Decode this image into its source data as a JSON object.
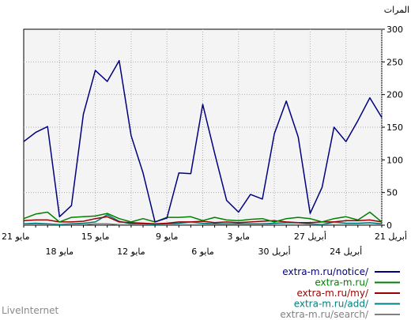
{
  "chart_data": {
    "type": "line",
    "ylabel": "المرات",
    "ylim": [
      0,
      300
    ],
    "y_ticks": [
      0,
      50,
      100,
      150,
      200,
      250,
      300
    ],
    "x_tick_labels_top": [
      "21 مايو",
      "15 مايو",
      "9 مايو",
      "3 مايو",
      "27 أبريل",
      "21 أبريل"
    ],
    "x_tick_labels_bottom": [
      "18 مايو",
      "12 مايو",
      "6 مايو",
      "30 أبريل",
      "24 أبريل"
    ],
    "grid": true,
    "legend_position": "bottom-right",
    "series": [
      {
        "name": "extra-m.ru/notice/",
        "color": "#000080",
        "values": [
          128,
          142,
          151,
          13,
          30,
          170,
          237,
          220,
          252,
          137,
          80,
          5,
          11,
          80,
          79,
          185,
          110,
          38,
          20,
          47,
          40,
          140,
          190,
          135,
          18,
          58,
          150,
          128,
          160,
          195,
          165
        ]
      },
      {
        "name": "extra-m.ru/",
        "color": "#008000",
        "values": [
          10,
          17,
          20,
          5,
          12,
          13,
          14,
          18,
          10,
          5,
          10,
          5,
          12,
          12,
          13,
          7,
          12,
          8,
          7,
          9,
          10,
          5,
          10,
          12,
          10,
          5,
          10,
          13,
          8,
          20,
          5
        ]
      },
      {
        "name": "extra-m.ru/my/",
        "color": "#990000",
        "values": [
          7,
          8,
          8,
          5,
          5,
          6,
          10,
          13,
          5,
          4,
          3,
          2,
          3,
          5,
          5,
          6,
          4,
          5,
          4,
          5,
          6,
          7,
          5,
          4,
          4,
          5,
          5,
          7,
          7,
          8,
          5
        ]
      },
      {
        "name": "extra-m.ru/add/",
        "color": "#008080",
        "values": [
          2,
          3,
          2,
          1,
          2,
          3,
          5,
          16,
          6,
          2,
          2,
          1,
          2,
          3,
          5,
          3,
          2,
          2,
          2,
          2,
          2,
          3,
          4,
          4,
          2,
          1,
          5,
          3,
          3,
          4,
          2
        ]
      },
      {
        "name": "extra-m.ru/search/",
        "color": "#808080",
        "values": [
          1,
          1,
          1,
          1,
          1,
          1,
          2,
          2,
          1,
          1,
          1,
          1,
          1,
          1,
          1,
          1,
          1,
          1,
          1,
          1,
          1,
          1,
          1,
          1,
          1,
          1,
          1,
          1,
          1,
          1,
          1
        ]
      }
    ]
  },
  "footer": "LiveInternet"
}
